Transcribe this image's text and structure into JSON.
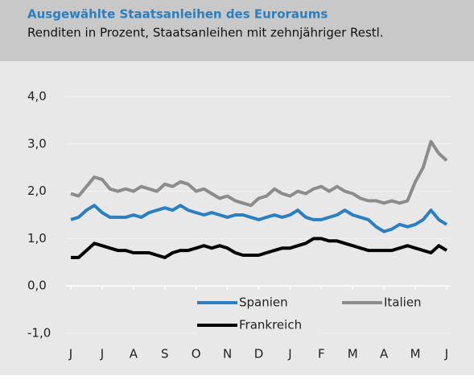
{
  "chart_data": {
    "type": "line",
    "title": "Ausgewählte Staatsanleihen des Euroraums",
    "subtitle": "Renditen in Prozent, Staatsanleihen mit zehnjähriger Restl.",
    "categories": [
      "J",
      null,
      null,
      null,
      "J",
      null,
      null,
      null,
      "A",
      null,
      null,
      null,
      "S",
      null,
      null,
      null,
      "O",
      null,
      null,
      null,
      "N",
      null,
      null,
      null,
      "D",
      null,
      null,
      null,
      "J",
      null,
      null,
      null,
      "F",
      null,
      null,
      null,
      "M",
      null,
      null,
      null,
      "A",
      null,
      null,
      null,
      "M",
      null,
      null,
      null,
      "J"
    ],
    "series": [
      {
        "name": "Spanien",
        "color": "#2a7fc1",
        "values": [
          1.4,
          1.45,
          1.6,
          1.7,
          1.55,
          1.45,
          1.45,
          1.45,
          1.5,
          1.45,
          1.55,
          1.6,
          1.65,
          1.6,
          1.7,
          1.6,
          1.55,
          1.5,
          1.55,
          1.5,
          1.45,
          1.5,
          1.5,
          1.45,
          1.4,
          1.45,
          1.5,
          1.45,
          1.5,
          1.6,
          1.45,
          1.4,
          1.4,
          1.45,
          1.5,
          1.6,
          1.5,
          1.45,
          1.4,
          1.25,
          1.15,
          1.2,
          1.3,
          1.25,
          1.3,
          1.4,
          1.6,
          1.4,
          1.3
        ]
      },
      {
        "name": "Italien",
        "color": "#8c8c8c",
        "values": [
          1.95,
          1.9,
          2.1,
          2.3,
          2.25,
          2.05,
          2.0,
          2.05,
          2.0,
          2.1,
          2.05,
          2.0,
          2.15,
          2.1,
          2.2,
          2.15,
          2.0,
          2.05,
          1.95,
          1.85,
          1.9,
          1.8,
          1.75,
          1.7,
          1.85,
          1.9,
          2.05,
          1.95,
          1.9,
          2.0,
          1.95,
          2.05,
          2.1,
          2.0,
          2.1,
          2.0,
          1.95,
          1.85,
          1.8,
          1.8,
          1.75,
          1.8,
          1.75,
          1.8,
          2.2,
          2.5,
          3.05,
          2.8,
          2.65
        ]
      },
      {
        "name": "Frankreich",
        "color": "#000000",
        "values": [
          0.6,
          0.6,
          0.75,
          0.9,
          0.85,
          0.8,
          0.75,
          0.75,
          0.7,
          0.7,
          0.7,
          0.65,
          0.6,
          0.7,
          0.75,
          0.75,
          0.8,
          0.85,
          0.8,
          0.85,
          0.8,
          0.7,
          0.65,
          0.65,
          0.65,
          0.7,
          0.75,
          0.8,
          0.8,
          0.85,
          0.9,
          1.0,
          1.0,
          0.95,
          0.95,
          0.9,
          0.85,
          0.8,
          0.75,
          0.75,
          0.75,
          0.75,
          0.8,
          0.85,
          0.8,
          0.75,
          0.7,
          0.85,
          0.75
        ]
      }
    ],
    "ylim": [
      -1,
      4
    ],
    "yticks": [
      {
        "value": -1,
        "label": "-1,0"
      },
      {
        "value": 0,
        "label": "0,0"
      },
      {
        "value": 1,
        "label": "1,0"
      },
      {
        "value": 2,
        "label": "2,0"
      },
      {
        "value": 3,
        "label": "3,0"
      },
      {
        "value": 4,
        "label": "4,0"
      }
    ],
    "grid": true,
    "legend": "bottom"
  }
}
